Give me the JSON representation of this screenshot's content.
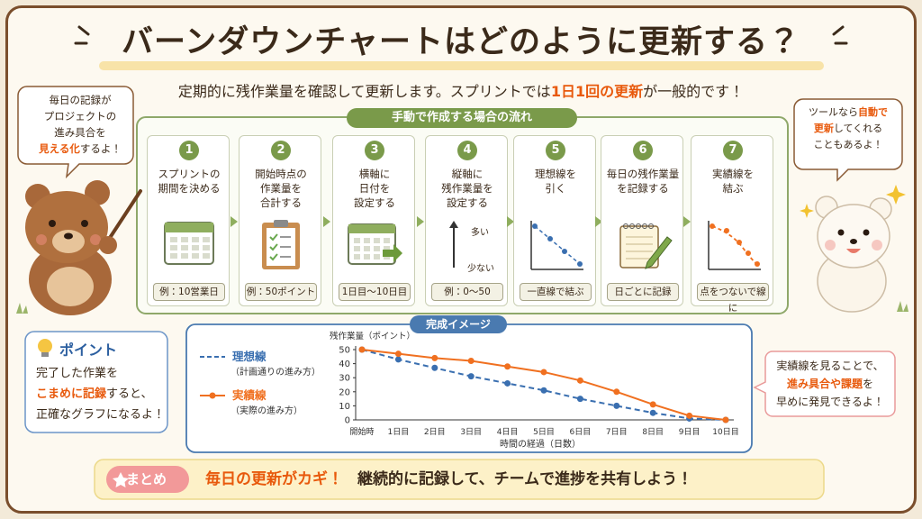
{
  "title": "バーンダウンチャートはどのように更新する？",
  "subtitle": [
    [
      {
        "text": "定期的に残作業量を確認して更新します。スプリントでは"
      },
      {
        "text": "1日1回の更新",
        "em": true
      },
      {
        "text": "が一般的です！"
      }
    ]
  ],
  "bubble_left": [
    [
      {
        "text": "毎日の記録が"
      }
    ],
    [
      {
        "text": "プロジェクトの"
      }
    ],
    [
      {
        "text": "進み具合を"
      }
    ],
    [
      {
        "text": "見える化",
        "em": true
      },
      {
        "text": "するよ！"
      }
    ]
  ],
  "bubble_right": [
    [
      {
        "text": "ツールなら"
      },
      {
        "text": "自動で",
        "em": true
      }
    ],
    [
      {
        "text": "更新",
        "em": true
      },
      {
        "text": "してくれる"
      }
    ],
    [
      {
        "text": "こともあるよ！"
      }
    ]
  ],
  "flow": {
    "heading": "手動で作成する場合の流れ",
    "steps": [
      {
        "number": 1,
        "title": [
          "スプリントの",
          "期間を決める"
        ],
        "example": "例：10営業日"
      },
      {
        "number": 2,
        "title": [
          "開始時点の",
          "作業量を",
          "合計する"
        ],
        "example": "例：50ポイント"
      },
      {
        "number": 3,
        "title": [
          "横軸に",
          "日付を",
          "設定する"
        ],
        "example": "1日目〜10日目"
      },
      {
        "number": 4,
        "title": [
          "縦軸に",
          "残作業量を",
          "設定する"
        ],
        "example": "例：0〜50",
        "axis_labels": [
          "多い",
          "少ない"
        ]
      },
      {
        "number": 5,
        "title": [
          "理想線を",
          "引く"
        ],
        "example": "一直線で結ぶ"
      },
      {
        "number": 6,
        "title": [
          "毎日の残作業量",
          "を記録する"
        ],
        "example": "日ごとに記録"
      },
      {
        "number": 7,
        "title": [
          "実績線を",
          "結ぶ"
        ],
        "example": "点をつないで線に"
      }
    ]
  },
  "point": {
    "heading": "ポイント",
    "body": [
      [
        {
          "text": "完了した作業を"
        }
      ],
      [
        {
          "text": "こまめに記録",
          "em": true
        },
        {
          "text": "すると、"
        }
      ],
      [
        {
          "text": "正確なグラフになるよ！"
        }
      ]
    ]
  },
  "chart_data": {
    "type": "line",
    "heading": "完成イメージ",
    "ylabel": "残作業量（ポイント）",
    "xlabel": "時間の経過（日数）",
    "categories": [
      "開始時",
      "1日目",
      "2日目",
      "3日目",
      "4日目",
      "5日目",
      "6日目",
      "7日目",
      "8日目",
      "9日目",
      "10日目"
    ],
    "series": [
      {
        "name": "理想線",
        "note": "（計画通りの進み方）",
        "color": "#3a6fb0",
        "dashed": true,
        "values": [
          50,
          43,
          37,
          31,
          26,
          21,
          15,
          10,
          5,
          1,
          0
        ]
      },
      {
        "name": "実績線",
        "note": "（実際の進み方）",
        "color": "#f07020",
        "dashed": false,
        "values": [
          50,
          47,
          44,
          42,
          38,
          34,
          28,
          20,
          11,
          3,
          0
        ]
      }
    ],
    "ylim": [
      0,
      50
    ],
    "yticks": [
      0,
      10,
      20,
      30,
      40,
      50
    ],
    "grid": false
  },
  "note": [
    [
      {
        "text": "実績線を見ることで、"
      }
    ],
    [
      {
        "text": "進み具合や課題",
        "em": true
      },
      {
        "text": "を"
      }
    ],
    [
      {
        "text": "早めに発見できるよ！"
      }
    ]
  ],
  "summary": {
    "label": "まとめ",
    "lead": "毎日の更新がカギ！",
    "text": "継続的に記録して、チームで進捗を共有しよう！"
  }
}
